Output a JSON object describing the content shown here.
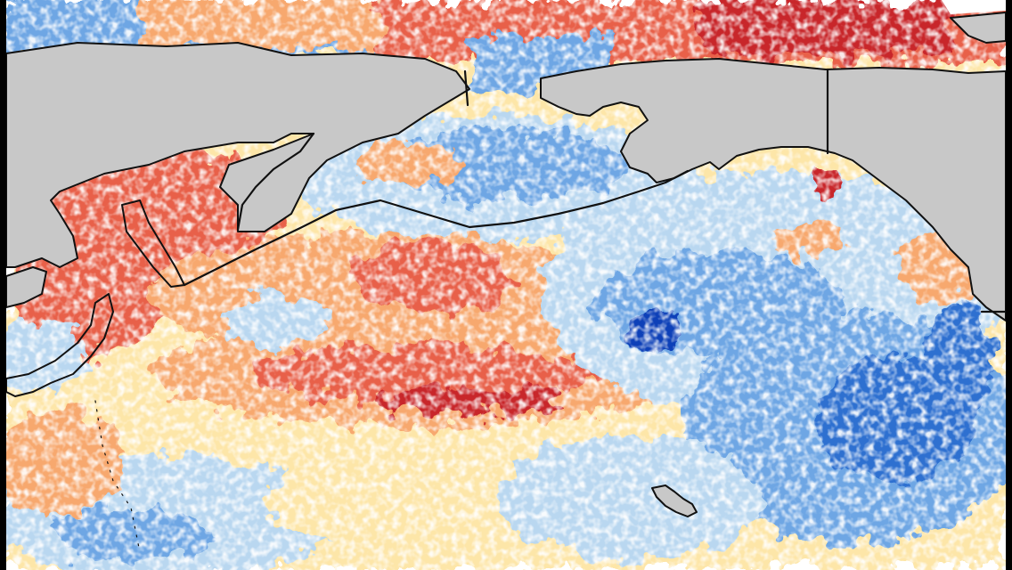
{
  "map": {
    "type": "sea-surface-temperature-anomaly",
    "region": "North Pacific",
    "colors": {
      "land": "#c8c8c8",
      "coast": "#111111",
      "warm_strong": "#c8262a",
      "warm": "#e8604a",
      "warm_light": "#f7a86e",
      "neutral_warm": "#fde6a8",
      "neutral": "#ffffff",
      "cool_light": "#b9d7f0",
      "cool": "#6ea6e4",
      "cool_strong": "#2f6fd0",
      "cool_deep": "#0b3fb8",
      "letterbox": "#000000"
    }
  }
}
